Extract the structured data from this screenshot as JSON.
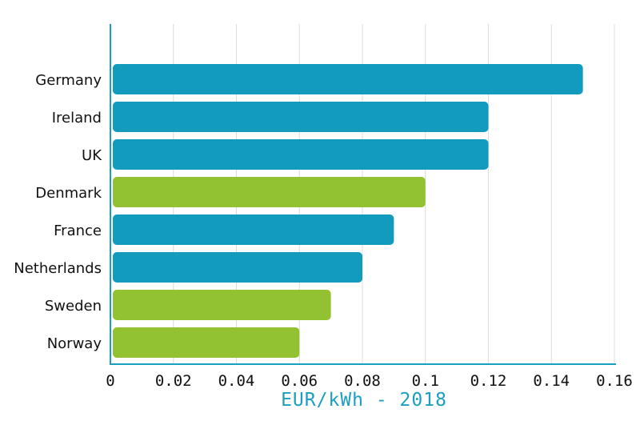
{
  "chart_data": {
    "type": "bar",
    "orientation": "horizontal",
    "categories": [
      "Germany",
      "Ireland",
      "UK",
      "Denmark",
      "France",
      "Netherlands",
      "Sweden",
      "Norway"
    ],
    "values": [
      0.15,
      0.12,
      0.12,
      0.1,
      0.09,
      0.08,
      0.07,
      0.06
    ],
    "bar_colors": [
      "#129bbd",
      "#129bbd",
      "#129bbd",
      "#92c131",
      "#129bbd",
      "#129bbd",
      "#92c131",
      "#92c131"
    ],
    "xlabel": "EUR/kWh - 2018",
    "xlim": [
      0,
      0.16
    ],
    "xticks": [
      "0",
      "0.02",
      "0.04",
      "0.06",
      "0.08",
      "0.1",
      "0.12",
      "0.14",
      "0.16"
    ],
    "grid": "vertical",
    "axis_color": "#1a9fc0",
    "legend": "none"
  }
}
